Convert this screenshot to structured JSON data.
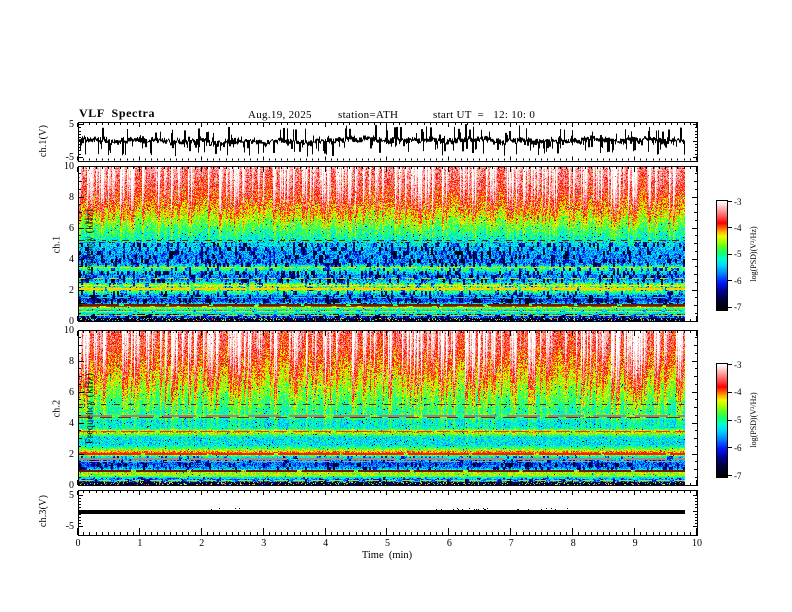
{
  "header": {
    "title": "VLF  Spectra",
    "date": "Aug.19, 2025",
    "station": "station=ATH",
    "start_ut": "start UT  =   12: 10: 0"
  },
  "x_axis": {
    "label": "Time  (min)",
    "lim": [
      0,
      10
    ],
    "major_ticks": [
      0,
      1,
      2,
      3,
      4,
      5,
      6,
      7,
      8,
      9,
      10
    ],
    "minor_step": 0.1,
    "data_end_min": 9.8
  },
  "colorbar": {
    "label": "log(PSD)(V²/Hz)",
    "ticks": [
      -3,
      -4,
      -5,
      -6,
      -7
    ],
    "lim": [
      -7,
      -3
    ],
    "stops": [
      [
        0,
        "#000000"
      ],
      [
        0.09,
        "#00003a"
      ],
      [
        0.17,
        "#000090"
      ],
      [
        0.25,
        "#0018ff"
      ],
      [
        0.33,
        "#0080ff"
      ],
      [
        0.41,
        "#00d8ff"
      ],
      [
        0.47,
        "#00ffd0"
      ],
      [
        0.52,
        "#10ff70"
      ],
      [
        0.58,
        "#58ff20"
      ],
      [
        0.63,
        "#a8ff00"
      ],
      [
        0.68,
        "#f0f800"
      ],
      [
        0.72,
        "#ffb000"
      ],
      [
        0.76,
        "#ff5500"
      ],
      [
        0.8,
        "#ff0000"
      ],
      [
        0.86,
        "#ff5555"
      ],
      [
        0.92,
        "#ff9f9f"
      ],
      [
        0.97,
        "#ffdede"
      ],
      [
        1,
        "#ffffff"
      ]
    ]
  },
  "chart_data": [
    {
      "id": "ch1_waveform",
      "type": "line",
      "ylabel": "ch.1(V)",
      "ylim": [
        -5,
        5
      ],
      "yticks": [
        5,
        -5
      ],
      "time_span_min": [
        0,
        9.8
      ],
      "description": "Dense broadband VLF time series: noise band about ±1 V around 0 with frequent impulsive sferic spikes reaching about ±4.5 V",
      "signal": {
        "baseline_v": 0.25,
        "noise_sigma_v": 0.55,
        "spike_rate": 0.1,
        "spike_amp_v": [
          1.5,
          4.6
        ],
        "spike_negative_fraction": 0.62,
        "seed": 303
      }
    },
    {
      "id": "ch1_spectrogram",
      "type": "heatmap",
      "ylabel_lines": [
        "ch.1",
        "Frequency (kHz)"
      ],
      "ylim": [
        0,
        10
      ],
      "yticks": [
        10,
        8,
        6,
        4,
        2,
        0
      ],
      "y_minor_step": 0.5,
      "psd_lim": [
        -7,
        -3
      ],
      "description": "PSD increases with frequency: red (-4 to -3.6) above 8 kHz, yellow-green 6-8 kHz, green 5-6 kHz, cyan-blue speckled 1-5 kHz, with vertical sferic streaks descending from the top",
      "base_profile_khz_logpsd": [
        [
          0,
          -6.2
        ],
        [
          0.2,
          -5.7
        ],
        [
          0.35,
          -5.9
        ],
        [
          0.5,
          -4.9
        ],
        [
          0.65,
          -5.5
        ],
        [
          0.8,
          -4.8
        ],
        [
          0.95,
          -4.35
        ],
        [
          1.1,
          -5.2
        ],
        [
          1.3,
          -5.9
        ],
        [
          1.6,
          -5.7
        ],
        [
          1.9,
          -4.8
        ],
        [
          2.1,
          -4.35
        ],
        [
          2.35,
          -4.5
        ],
        [
          2.6,
          -5.5
        ],
        [
          3.0,
          -5.6
        ],
        [
          3.45,
          -4.7
        ],
        [
          3.7,
          -5.6
        ],
        [
          4.5,
          -5.55
        ],
        [
          5.2,
          -5.3
        ],
        [
          6.0,
          -5.0
        ],
        [
          6.8,
          -4.6
        ],
        [
          7.5,
          -4.3
        ],
        [
          8.2,
          -4.05
        ],
        [
          9.0,
          -3.85
        ],
        [
          10,
          -3.7
        ]
      ],
      "streaks": {
        "rate": 0.22,
        "strength": 1.5,
        "f_start_khz": 4.3,
        "seed": 101
      },
      "speckle_zones_khz": [
        [
          1.05,
          5.1
        ],
        [
          0.15,
          0.45
        ]
      ],
      "speckle": {
        "rate": 0.38,
        "depth": 4.0
      },
      "noise_amp": 0.85,
      "bottom_band_khz": 0.18,
      "h_lines": [
        {
          "f_khz": 5.25,
          "color": "#6b2400",
          "width": 1,
          "dash": [
            5,
            5
          ]
        },
        {
          "f_khz": 3.45,
          "color": "#d8e000",
          "width": 1,
          "dash": [
            9,
            4
          ]
        },
        {
          "f_khz": 2.75,
          "color": "#b8e000",
          "width": 1,
          "dash": [
            7,
            6
          ]
        },
        {
          "f_khz": 2.32,
          "color": "#f0f000",
          "width": 1,
          "dash": [
            10,
            3
          ]
        },
        {
          "f_khz": 2.08,
          "color": "#ffd000",
          "width": 2,
          "dash": [
            24,
            2
          ]
        },
        {
          "f_khz": 1.55,
          "color": "#00e0c8",
          "width": 1,
          "dash": [
            12,
            6
          ]
        },
        {
          "f_khz": 1.06,
          "color": "#6b1c00",
          "width": 2,
          "dash": [
            40,
            3
          ]
        },
        {
          "f_khz": 0.93,
          "color": "#a83c00",
          "width": 1,
          "dash": [
            20,
            4
          ]
        },
        {
          "f_khz": 0.62,
          "color": "#c8e800",
          "width": 1,
          "dash": [
            16,
            3
          ]
        },
        {
          "f_khz": 0.48,
          "color": "#00d8d0",
          "width": 1,
          "dash": [
            14,
            4
          ]
        },
        {
          "f_khz": 0.34,
          "color": "#b0e000",
          "width": 1,
          "dash": [
            12,
            4
          ]
        }
      ]
    },
    {
      "id": "ch2_spectrogram",
      "type": "heatmap",
      "ylabel_lines": [
        "ch.2",
        "Frequency (kHz)"
      ],
      "ylim": [
        0,
        10
      ],
      "yticks": [
        10,
        8,
        6,
        4,
        2,
        0
      ],
      "y_minor_step": 0.5,
      "psd_lim": [
        -7,
        -3
      ],
      "description": "Yellow-red above 6 kHz with strong vertical sferic streaks, green middle, narrowband interference lines (red line near 3.5 and 2.0 kHz, gray instrument bands near 4.5 and 1.6 kHz), cyan-blue speckle 1-1.9 kHz",
      "base_profile_khz_logpsd": [
        [
          0,
          -6.0
        ],
        [
          0.15,
          -5.3
        ],
        [
          0.3,
          -5.8
        ],
        [
          0.5,
          -4.85
        ],
        [
          0.7,
          -4.6
        ],
        [
          0.88,
          -4.25
        ],
        [
          1.05,
          -5.5
        ],
        [
          1.35,
          -5.8
        ],
        [
          1.6,
          -5.5
        ],
        [
          1.85,
          -5.0
        ],
        [
          2.08,
          -3.85
        ],
        [
          2.3,
          -4.6
        ],
        [
          2.6,
          -5.3
        ],
        [
          3.1,
          -5.3
        ],
        [
          3.45,
          -4.3
        ],
        [
          3.7,
          -5.3
        ],
        [
          4.2,
          -5.35
        ],
        [
          4.45,
          -4.9
        ],
        [
          4.7,
          -5.2
        ],
        [
          5.5,
          -5.0
        ],
        [
          6.2,
          -4.8
        ],
        [
          7.0,
          -4.55
        ],
        [
          8.0,
          -4.3
        ],
        [
          9.0,
          -4.05
        ],
        [
          10,
          -3.95
        ]
      ],
      "streaks": {
        "rate": 0.28,
        "strength": 1.6,
        "f_start_khz": 2.6,
        "seed": 202
      },
      "speckle_zones_khz": [
        [
          0.95,
          1.9
        ],
        [
          0.15,
          0.5
        ]
      ],
      "speckle": {
        "rate": 0.34,
        "depth": 3.6
      },
      "noise_amp": 0.8,
      "bottom_band_khz": 0.18,
      "h_lines": [
        {
          "f_khz": 5.22,
          "color": "#6b2400",
          "width": 1,
          "dash": [
            5,
            6
          ]
        },
        {
          "f_khz": 4.48,
          "color": "#8c8c8c",
          "width": 2,
          "dash": [
            34,
            8
          ]
        },
        {
          "f_khz": 4.36,
          "color": "#7a2c00",
          "width": 1,
          "dash": [
            12,
            6
          ]
        },
        {
          "f_khz": 3.47,
          "color": "#ff3000",
          "width": 1,
          "dash": [
            14,
            4
          ]
        },
        {
          "f_khz": 2.03,
          "color": "#ff1e00",
          "width": 2,
          "dash": [
            60,
            3
          ]
        },
        {
          "f_khz": 1.68,
          "color": "#909090",
          "width": 2,
          "dash": [
            44,
            9
          ]
        },
        {
          "f_khz": 1.5,
          "color": "#9c9c9c",
          "width": 1,
          "dash": [
            30,
            12
          ]
        },
        {
          "f_khz": 0.88,
          "color": "#6b1c00",
          "width": 2,
          "dash": [
            50,
            3
          ]
        },
        {
          "f_khz": 0.63,
          "color": "#c8e800",
          "width": 1,
          "dash": [
            16,
            3
          ]
        },
        {
          "f_khz": 0.46,
          "color": "#00d8d0",
          "width": 1,
          "dash": [
            14,
            5
          ]
        },
        {
          "f_khz": 0.3,
          "color": "#b0e000",
          "width": 1,
          "dash": [
            12,
            4
          ]
        }
      ]
    },
    {
      "id": "ch3_waveform",
      "type": "line",
      "ylabel": "ch.3(V)",
      "ylim": [
        -5,
        5
      ],
      "yticks": [
        5,
        -5
      ],
      "time_span_min": [
        0,
        9.8
      ],
      "flat_value_v": -0.1,
      "line_thickness_v": 1.4,
      "speck_regions_min": [
        [
          2.1,
          2.6
        ],
        [
          5.6,
          6.6
        ],
        [
          6.9,
          8.1
        ]
      ],
      "seed": 404,
      "description": "Flat constant trace near 0 V for the entire record"
    }
  ],
  "colors": {
    "frame": "#000000",
    "background": "#ffffff"
  }
}
